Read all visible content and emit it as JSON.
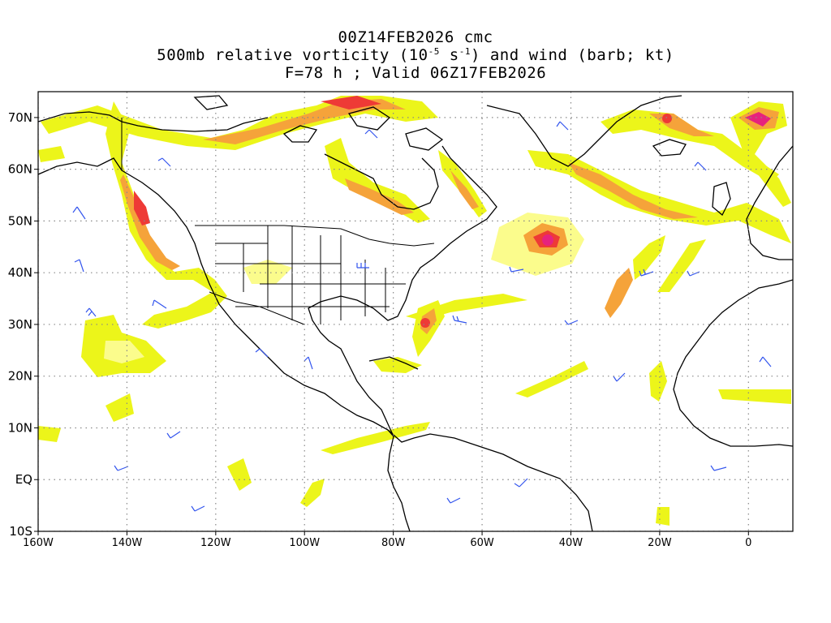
{
  "header": {
    "line1": "00Z14FEB2026 cmc",
    "line2_prefix": "500mb relative vorticity (10",
    "line2_exp1": "-5",
    "line2_mid": " s",
    "line2_exp2": "-1",
    "line2_suffix": ") and wind (barb; kt)",
    "line3": "F=78 h ; Valid 06Z17FEB2026"
  },
  "axes": {
    "lat_labels": [
      "70N",
      "60N",
      "50N",
      "40N",
      "30N",
      "20N",
      "10N",
      "EQ",
      "10S"
    ],
    "lon_labels": [
      "160W",
      "140W",
      "120W",
      "100W",
      "80W",
      "60W",
      "40W",
      "20W",
      "0"
    ],
    "lat_values": [
      70,
      60,
      50,
      40,
      30,
      20,
      10,
      0,
      -10
    ],
    "lon_values": [
      -160,
      -140,
      -120,
      -100,
      -80,
      -60,
      -40,
      -20,
      0
    ],
    "lon_range": [
      -160,
      10
    ],
    "lat_range": [
      -10,
      75
    ],
    "grid": "dotted"
  },
  "colors": {
    "yellow": "#ecf51a",
    "light_yellow": "#fbfc8c",
    "orange": "#f5a33a",
    "red": "#ee3a36",
    "magenta": "#e6227e",
    "barb": "#3355ee",
    "coast": "#000000"
  },
  "vorticity_features": [
    {
      "lon": -135,
      "lat": 52,
      "level": 4
    },
    {
      "lon": -131,
      "lat": 44,
      "level": 3
    },
    {
      "lon": -75,
      "lat": 30,
      "level": 4
    },
    {
      "lon": -45,
      "lat": 46,
      "level": 5
    },
    {
      "lon": 0,
      "lat": 69,
      "level": 5
    },
    {
      "lon": -18,
      "lat": 70,
      "level": 4
    },
    {
      "lon": -87,
      "lat": 56,
      "level": 3
    },
    {
      "lon": -78,
      "lat": 73,
      "level": 4
    }
  ]
}
